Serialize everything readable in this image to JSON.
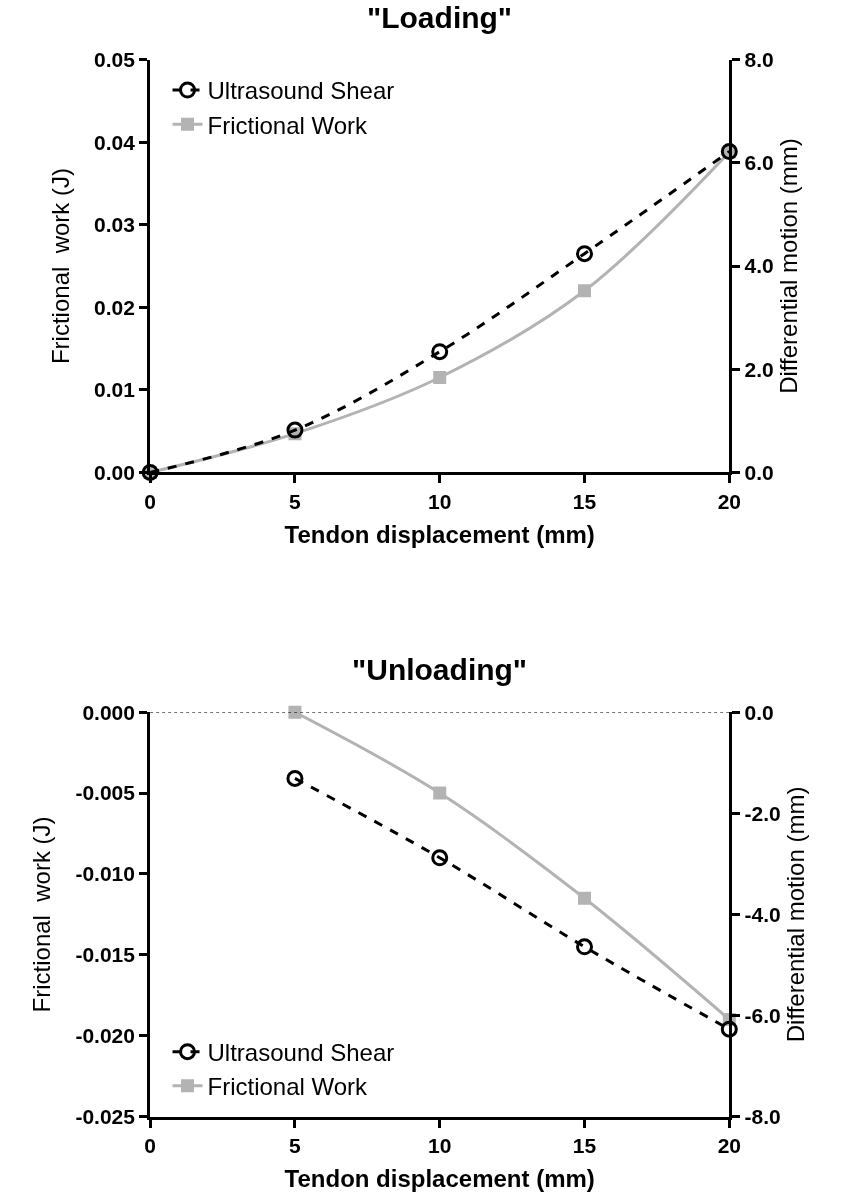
{
  "chart_data": [
    {
      "type": "line",
      "title": "\"Loading\"",
      "xlabel": "Tendon displacement (mm)",
      "ylabel": "Frictional  work (J)",
      "y2label": "Differential motion (mm)",
      "x": [
        0,
        5,
        10,
        15,
        20
      ],
      "xlim": [
        0,
        20
      ],
      "xticks": [
        0,
        5,
        10,
        15,
        20
      ],
      "ylim": [
        0,
        0.05
      ],
      "yticks": [
        {
          "value": 0,
          "label": "0.00"
        },
        {
          "value": 0.01,
          "label": "0.01"
        },
        {
          "value": 0.02,
          "label": "0.02"
        },
        {
          "value": 0.03,
          "label": "0.03"
        },
        {
          "value": 0.04,
          "label": "0.04"
        },
        {
          "value": 0.05,
          "label": "0.05"
        }
      ],
      "y2lim": [
        0,
        8
      ],
      "y2ticks": [
        {
          "value": 0,
          "label": "0.0"
        },
        {
          "value": 2,
          "label": "2.0"
        },
        {
          "value": 4,
          "label": "4.0"
        },
        {
          "value": 6,
          "label": "6.0"
        },
        {
          "value": 8,
          "label": "8.0"
        }
      ],
      "legend": "top left",
      "series": [
        {
          "name": "Ultrasound Shear",
          "color": "#000000",
          "axis": "y2",
          "marker": "circle",
          "line_style": "dashed",
          "values": [
            0,
            0.82,
            2.34,
            4.24,
            6.22
          ]
        },
        {
          "name": "Frictional Work",
          "color": "#b3b3b3",
          "marker": "square",
          "line_style": "solid",
          "values": [
            0,
            0.0047,
            0.0115,
            0.022,
            0.0388
          ]
        }
      ]
    },
    {
      "type": "line",
      "title": "\"Unloading\"",
      "xlabel": "Tendon displacement (mm)",
      "ylabel": "Frictional  work (J)",
      "y2label": "Differential motion (mm)",
      "x": [
        5,
        10,
        15,
        20
      ],
      "xlim": [
        0,
        20
      ],
      "xticks": [
        0,
        5,
        10,
        15,
        20
      ],
      "ylim": [
        -0.025,
        0
      ],
      "yticks": [
        {
          "value": -0.025,
          "label": "-0.025"
        },
        {
          "value": -0.02,
          "label": "-0.020"
        },
        {
          "value": -0.015,
          "label": "-0.015"
        },
        {
          "value": -0.01,
          "label": "-0.010"
        },
        {
          "value": -0.005,
          "label": "-0.005"
        },
        {
          "value": 0,
          "label": "0.000"
        }
      ],
      "y2lim": [
        -8,
        0
      ],
      "y2ticks": [
        {
          "value": -8,
          "label": "-8.0"
        },
        {
          "value": -6,
          "label": "-6.0"
        },
        {
          "value": -4,
          "label": "-4.0"
        },
        {
          "value": -2,
          "label": "-2.0"
        },
        {
          "value": 0,
          "label": "0.0"
        }
      ],
      "legend": "bottom left",
      "ref_lines": [
        {
          "axis": "y",
          "value": 0,
          "color": "#000000",
          "line_style": "dotted"
        }
      ],
      "series": [
        {
          "name": "Ultrasound Shear",
          "color": "#000000",
          "axis": "y2",
          "marker": "circle",
          "line_style": "dashed",
          "values": [
            -1.31,
            -2.88,
            -4.64,
            -6.27
          ]
        },
        {
          "name": "Frictional Work",
          "color": "#b3b3b3",
          "marker": "square",
          "line_style": "solid",
          "values": [
            0,
            -0.005,
            -0.0115,
            -0.019
          ]
        }
      ]
    }
  ]
}
